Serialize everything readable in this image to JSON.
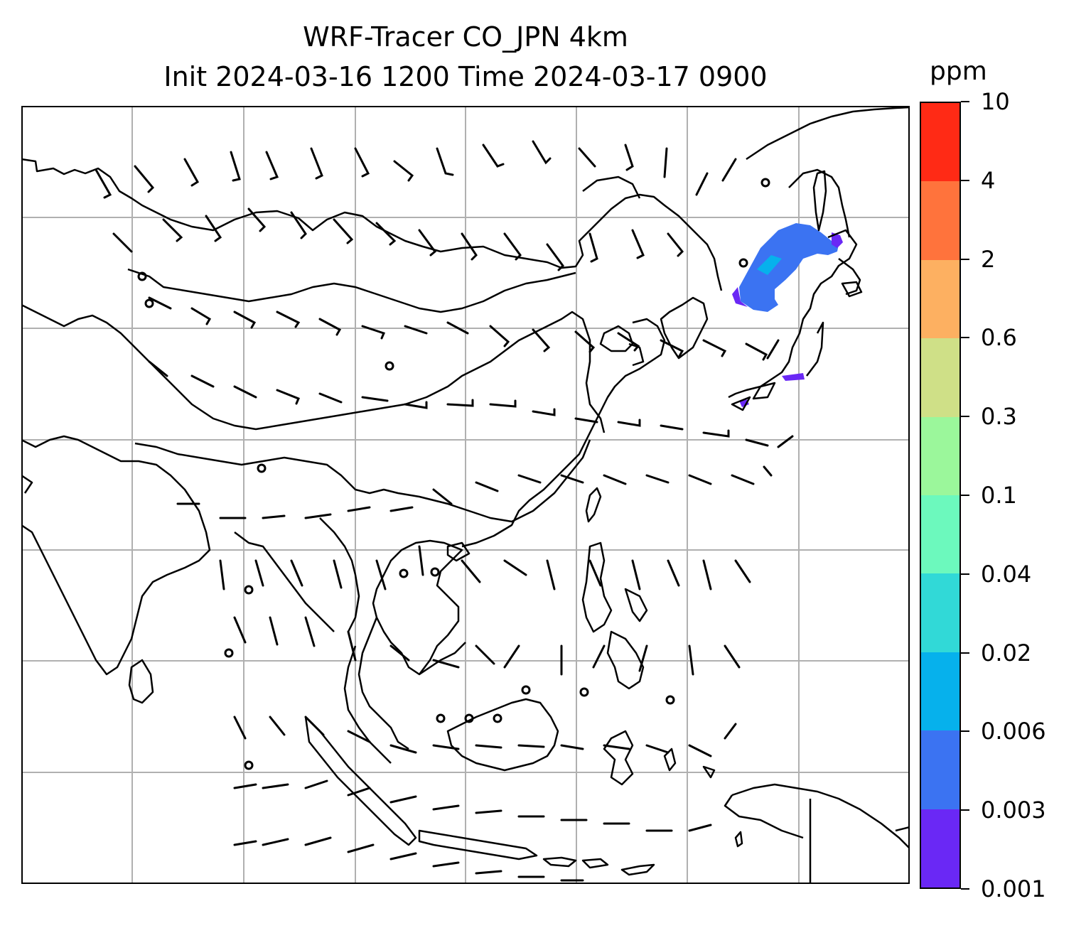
{
  "title_line1": "WRF-Tracer CO_JPN 4km",
  "title_line2": "Init 2024-03-16 1200 Time 2024-03-17 0900",
  "colorbar": {
    "unit": "ppm",
    "levels": [
      "0.001",
      "0.003",
      "0.006",
      "0.02",
      "0.04",
      "0.1",
      "0.3",
      "0.6",
      "2",
      "4",
      "10"
    ],
    "colors": [
      "#6a28f5",
      "#3b73f2",
      "#06b1ec",
      "#31d9d7",
      "#6cf9bd",
      "#9bf79b",
      "#cfe087",
      "#fdb061",
      "#ff733c",
      "#ff2a15"
    ]
  },
  "map": {
    "gridlines": true,
    "basemap": "coastlines-and-borders",
    "overlay": "wind-barbs",
    "plume_region": "Japan / Sea of Okhotsk"
  }
}
